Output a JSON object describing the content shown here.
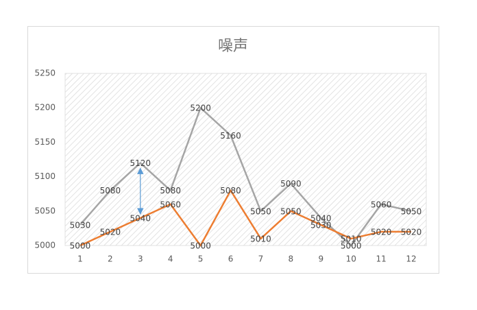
{
  "chart_data": {
    "type": "line",
    "title": "噪声",
    "categories": [
      "1",
      "2",
      "3",
      "4",
      "5",
      "6",
      "7",
      "8",
      "9",
      "10",
      "11",
      "12"
    ],
    "series": [
      {
        "color": "#a5a5a5",
        "values": [
          5030,
          5080,
          5120,
          5080,
          5200,
          5160,
          5050,
          5090,
          5040,
          5000,
          5060,
          5050
        ]
      },
      {
        "color": "#ed7d31",
        "values": [
          5000,
          5020,
          5040,
          5060,
          5000,
          5080,
          5010,
          5050,
          5030,
          5010,
          5020,
          5020
        ]
      }
    ],
    "ylim": [
      5000,
      5250
    ],
    "yticks": [
      5000,
      5050,
      5100,
      5150,
      5200,
      5250
    ]
  }
}
